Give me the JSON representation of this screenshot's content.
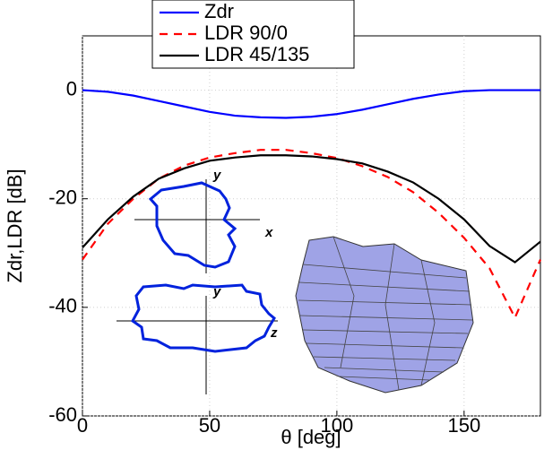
{
  "chart_data": {
    "type": "line",
    "xlabel": "θ [deg]",
    "ylabel": "Zdr,LDR [dB]",
    "x": [
      0,
      10,
      20,
      30,
      40,
      50,
      60,
      70,
      80,
      90,
      100,
      110,
      120,
      130,
      140,
      150,
      160,
      170,
      180
    ],
    "series": [
      {
        "name": "Zdr",
        "color": "#0000ff",
        "dashed": false,
        "values": [
          0,
          -0.3,
          -1,
          -2,
          -3,
          -4,
          -4.7,
          -5,
          -5.1,
          -4.9,
          -4.4,
          -3.6,
          -2.6,
          -1.6,
          -0.8,
          -0.2,
          0,
          0,
          0
        ]
      },
      {
        "name": "LDR 90/0",
        "color": "#ff0000",
        "dashed": true,
        "values": [
          -31.2,
          -24.6,
          -20,
          -16.3,
          -13.9,
          -12.4,
          -11.6,
          -11,
          -11,
          -11.6,
          -12.5,
          -14,
          -16,
          -18.8,
          -22.6,
          -27.2,
          -32.8,
          -41.9,
          -31.2
        ]
      },
      {
        "name": "LDR 45/135",
        "color": "#000000",
        "dashed": false,
        "values": [
          -29,
          -23.8,
          -19.6,
          -16.3,
          -14.4,
          -13,
          -12.4,
          -12,
          -12,
          -12.2,
          -12.7,
          -13.5,
          -15,
          -17,
          -20,
          -23.8,
          -28.7,
          -31.7,
          -27.9
        ]
      }
    ],
    "xlim": [
      0,
      180
    ],
    "xticks": [
      0,
      50,
      100,
      150
    ],
    "ylim": [
      -60,
      10
    ],
    "yticks": [
      -60,
      -40,
      -20,
      0
    ],
    "grid": true,
    "legend": "upper center",
    "annotations": [
      "y",
      "x",
      "y",
      "z"
    ]
  }
}
